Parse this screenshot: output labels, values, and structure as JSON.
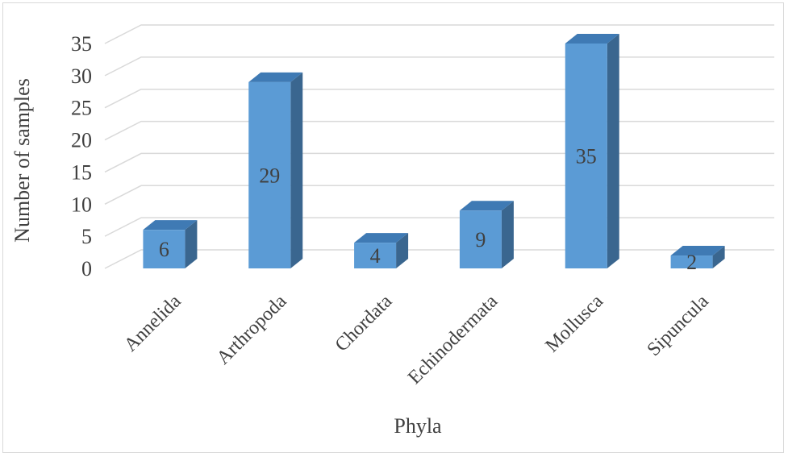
{
  "chart_data": {
    "type": "bar",
    "style": "3d-column",
    "categories": [
      "Annelida",
      "Arthropoda",
      "Chordata",
      "Echinodermata",
      "Mollusca",
      "Sipuncula"
    ],
    "values": [
      6,
      29,
      4,
      9,
      35,
      2
    ],
    "data_labels": [
      "6",
      "29",
      "4",
      "9",
      "35",
      "2"
    ],
    "title": "",
    "xlabel": "Phyla",
    "ylabel": "Number of samples",
    "ylim": [
      0,
      35
    ],
    "yticks": [
      0,
      5,
      10,
      15,
      20,
      25,
      30,
      35
    ],
    "ytick_labels": [
      "0",
      "5",
      "10",
      "15",
      "20",
      "25",
      "30",
      "35"
    ],
    "grid": true,
    "legend": "none",
    "colors": {
      "bar_front": "#5b9bd5",
      "bar_top": "#3f7ab4",
      "bar_side": "#3a668f",
      "grid": "#d9d9d9",
      "text": "#404040"
    }
  }
}
